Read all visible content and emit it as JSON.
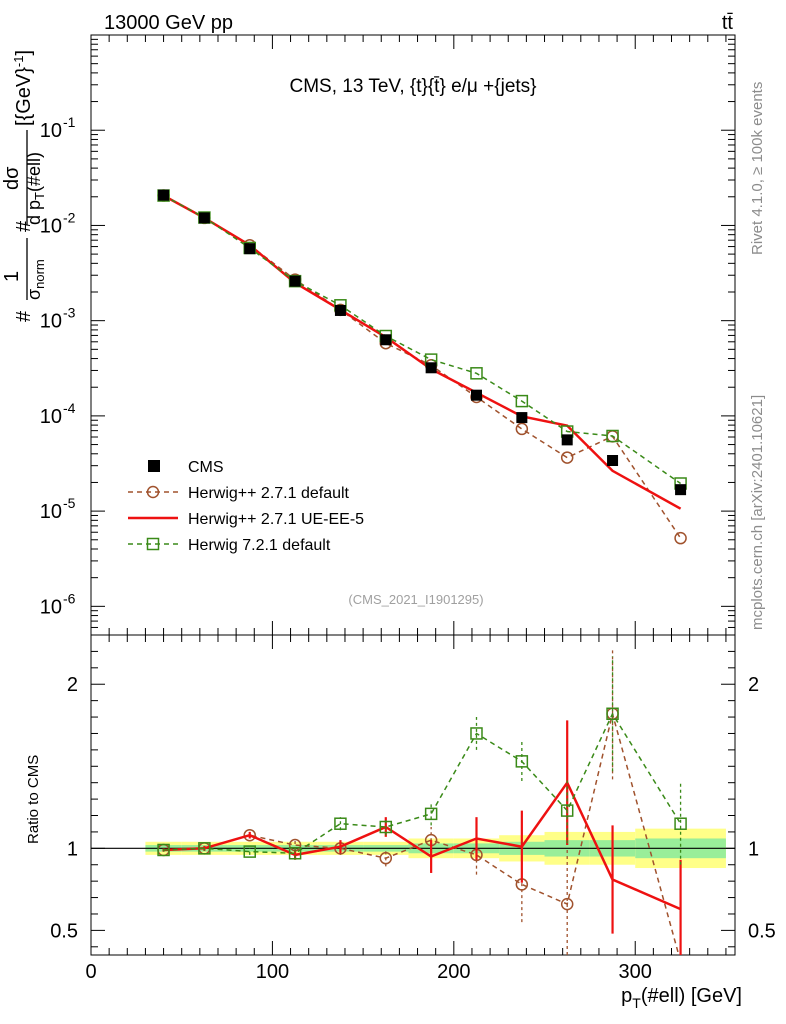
{
  "header": {
    "energy_label": "13000 GeV pp",
    "process_label": "tt̄"
  },
  "side_labels": {
    "rivet": "Rivet 4.1.0, ≥ 100k events",
    "mcplots": "mcplots.cern.ch [arXiv:2401.10621]"
  },
  "chart_data": {
    "type": "line",
    "title": "CMS, 13 TeV, {t}{t̄} e/μ +{jets}",
    "analysis_id": "(CMS_2021_I1901295)",
    "xlabel": "p_T(#ell) [GeV]",
    "ylabel": "#frac{1}{σ_norm} #frac{dσ}{d p_T(#ell)} [{GeV}^{-1}]",
    "ratio_ylabel": "Ratio to CMS",
    "xlim": [
      0,
      355
    ],
    "ylim": [
      5e-07,
      1
    ],
    "yscale": "log",
    "ratio_ylim": [
      0.35,
      2.3
    ],
    "x_ticks": [
      "0",
      "100",
      "200",
      "300"
    ],
    "y_ticks": [
      "10^-6",
      "10^-5",
      "10^-4",
      "10^-3",
      "10^-2",
      "10^-1"
    ],
    "ratio_ticks": [
      "0.5",
      "1",
      "2"
    ],
    "x": [
      40,
      62.5,
      87.5,
      112.5,
      137.5,
      162.5,
      187.5,
      212.5,
      237.5,
      262.5,
      287.5,
      325
    ],
    "x_bin_edges": [
      30,
      50,
      75,
      100,
      125,
      150,
      175,
      200,
      225,
      250,
      275,
      300,
      350
    ],
    "series": [
      {
        "name": "CMS",
        "color": "#000000",
        "style": "markers",
        "values": [
          0.0208,
          0.012,
          0.0057,
          0.0026,
          0.00128,
          0.00063,
          0.00032,
          0.000165,
          9.6e-05,
          5.6e-05,
          3.4e-05,
          1.68e-05
        ],
        "ratio_band_rel_error": [
          0.02,
          0.02,
          0.02,
          0.02,
          0.02,
          0.02,
          0.03,
          0.03,
          0.04,
          0.05,
          0.05,
          0.06
        ]
      },
      {
        "name": "Herwig++ 2.7.1 default",
        "color": "#a0522d",
        "style": "dashed-circle",
        "values": [
          0.0206,
          0.012,
          0.0062,
          0.0027,
          0.0013,
          0.00058,
          0.00034,
          0.000158,
          7.3e-05,
          3.65e-05,
          6.1e-05,
          5.2e-06
        ],
        "ratio": [
          0.99,
          1.0,
          1.08,
          1.02,
          1.0,
          0.94,
          1.05,
          0.96,
          0.78,
          0.66,
          1.82,
          0.31
        ],
        "ratio_err": [
          0.01,
          0.015,
          0.02,
          0.03,
          0.04,
          0.05,
          0.08,
          0.12,
          0.23,
          0.34,
          0.4,
          0.2
        ]
      },
      {
        "name": "Herwig++ 2.7.1 UE-EE-5",
        "color": "#ee1111",
        "style": "solid",
        "values": [
          0.0206,
          0.012,
          0.0062,
          0.0025,
          0.0013,
          0.00067,
          0.00031,
          0.000175,
          9.9e-05,
          7.9e-05,
          2.65e-05,
          1.06e-05
        ],
        "ratio": [
          0.99,
          1.0,
          1.08,
          0.96,
          1.01,
          1.13,
          0.95,
          1.06,
          1.01,
          1.4,
          0.81,
          0.63
        ],
        "ratio_err": [
          0.01,
          0.015,
          0.02,
          0.03,
          0.04,
          0.06,
          0.1,
          0.13,
          0.22,
          0.38,
          0.33,
          0.3
        ]
      },
      {
        "name": "Herwig 7.2.1 default",
        "color": "#3a8a18",
        "style": "dashed-square",
        "values": [
          0.0206,
          0.0121,
          0.0058,
          0.0026,
          0.00145,
          0.00069,
          0.00039,
          0.00028,
          0.000143,
          6.85e-05,
          6.15e-05,
          1.95e-05
        ],
        "ratio": [
          0.99,
          1.0,
          0.98,
          0.97,
          1.15,
          1.13,
          1.21,
          1.7,
          1.53,
          1.23,
          1.82,
          1.15
        ],
        "ratio_err": [
          0.01,
          0.015,
          0.02,
          0.03,
          0.04,
          0.05,
          0.07,
          0.1,
          0.12,
          0.2,
          0.35,
          0.25
        ]
      }
    ]
  }
}
